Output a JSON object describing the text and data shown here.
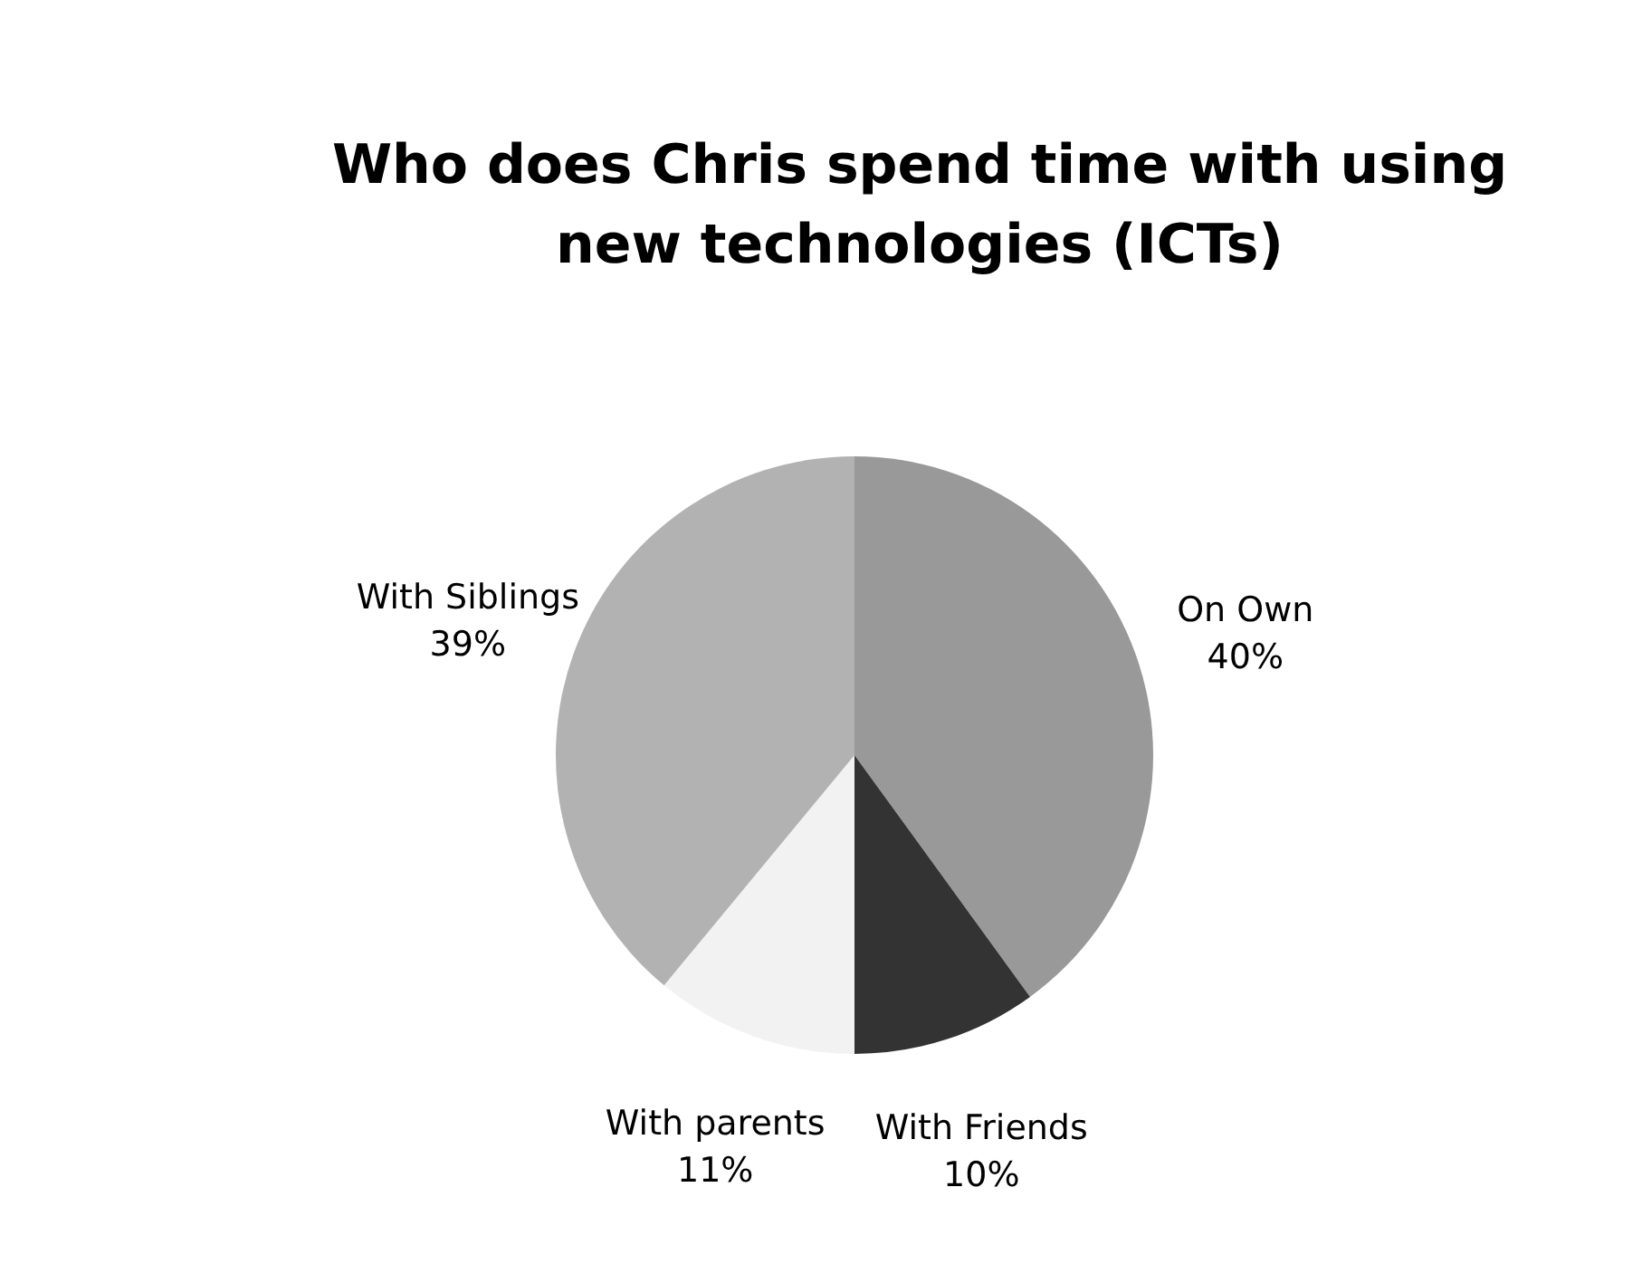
{
  "chart_data": {
    "type": "pie",
    "title": "Who does Chris spend time with using new technologies (ICTs)",
    "categories": [
      "On Own",
      "With Friends",
      "With parents",
      "With Siblings"
    ],
    "values": [
      40,
      10,
      11,
      39
    ],
    "value_labels": [
      "40%",
      "10%",
      "11%",
      "39%"
    ],
    "colors": [
      "#999999",
      "#333333",
      "#f2f2f2",
      "#b2b2b2"
    ],
    "legend": false
  }
}
